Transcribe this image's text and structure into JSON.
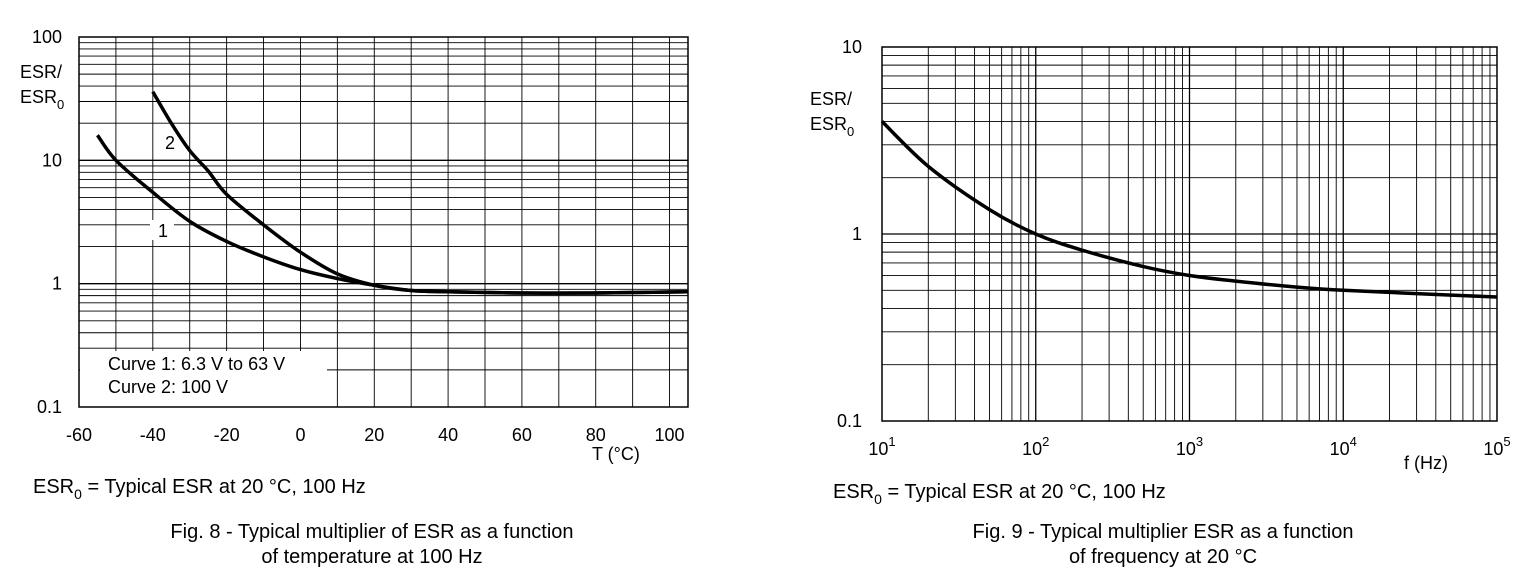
{
  "chart_data": [
    {
      "type": "line",
      "x_scale": "linear",
      "y_scale": "log",
      "xlim": [
        -60,
        105
      ],
      "ylim": [
        0.1,
        100
      ],
      "x_ticks": [
        -60,
        -40,
        -20,
        0,
        20,
        40,
        60,
        80,
        100
      ],
      "y_ticks": [
        0.1,
        1,
        10,
        100
      ],
      "y_tick_labels": [
        "0.1",
        "1",
        "10",
        "100"
      ],
      "ylabel_line1": "ESR/",
      "ylabel_line2_main": "ESR",
      "ylabel_line2_sub": "0",
      "xlabel": "T (°C)",
      "grid": true,
      "legend": [
        "Curve 1: 6.3 V to 63 V",
        "Curve 2: 100 V"
      ],
      "legend_position": "bottom-left",
      "series": [
        {
          "name": "1",
          "x": [
            -55,
            -50,
            -40,
            -30,
            -20,
            -10,
            0,
            10,
            20,
            30,
            40,
            60,
            80,
            105
          ],
          "y": [
            16,
            10,
            5.5,
            3.2,
            2.2,
            1.65,
            1.3,
            1.1,
            0.97,
            0.88,
            0.86,
            0.84,
            0.84,
            0.86
          ]
        },
        {
          "name": "2",
          "x": [
            -40,
            -35,
            -30,
            -25,
            -20,
            -10,
            0,
            10,
            20,
            30,
            40,
            60,
            80,
            105
          ],
          "y": [
            36,
            20,
            12,
            8.2,
            5.3,
            3.0,
            1.8,
            1.2,
            0.97,
            0.88,
            0.86,
            0.84,
            0.84,
            0.86
          ]
        }
      ],
      "note_main": "ESR",
      "note_sub": "0",
      "note_text": " = Typical ESR at 20 °C, 100 Hz",
      "caption_line1": "Fig. 8 - Typical multiplier of ESR as a function",
      "caption_line2": "of temperature at 100 Hz"
    },
    {
      "type": "line",
      "x_scale": "log",
      "y_scale": "log",
      "xlim": [
        10,
        100000
      ],
      "ylim": [
        0.1,
        10
      ],
      "x_ticks": [
        10,
        100,
        1000,
        10000,
        100000
      ],
      "x_tick_bases": [
        "10",
        "10",
        "10",
        "10",
        "10"
      ],
      "x_tick_exponents": [
        "1",
        "2",
        "3",
        "4",
        "5"
      ],
      "y_ticks": [
        0.1,
        1,
        10
      ],
      "y_tick_labels": [
        "0.1",
        "1",
        "10"
      ],
      "ylabel_line1": "ESR/",
      "ylabel_line2_main": "ESR",
      "ylabel_line2_sub": "0",
      "xlabel": "f (Hz)",
      "grid": true,
      "series": [
        {
          "name": "",
          "x": [
            10,
            20,
            50,
            100,
            200,
            500,
            1000,
            2000,
            5000,
            10000,
            30000,
            100000
          ],
          "y": [
            4.0,
            2.3,
            1.35,
            1.0,
            0.82,
            0.67,
            0.6,
            0.56,
            0.52,
            0.5,
            0.48,
            0.46
          ]
        }
      ],
      "note_main": "ESR",
      "note_sub": "0",
      "note_text": " = Typical ESR at 20 °C, 100 Hz",
      "caption_line1": "Fig. 9 - Typical multiplier ESR as a function",
      "caption_line2": "of frequency at 20 °C"
    }
  ]
}
